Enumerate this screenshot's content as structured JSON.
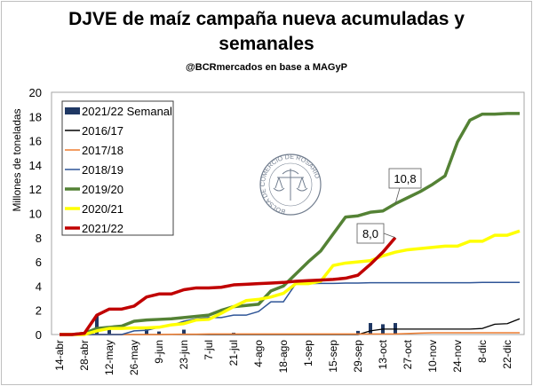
{
  "chart_data": {
    "type": "line",
    "title_line1": "DJVE de maíz campaña nueva acumuladas y",
    "title_line2": "semanales",
    "subtitle": "@BCRmercados  en base a MAGyP",
    "ylabel": "Millones de toneladas",
    "xlabel": "",
    "ylim": [
      0,
      20
    ],
    "yticks": [
      "0",
      "2",
      "4",
      "6",
      "8",
      "10",
      "12",
      "14",
      "16",
      "18",
      "20"
    ],
    "x_tick_labels": [
      "14-abr",
      "28-abr",
      "12-may",
      "26-may",
      "9-jun",
      "23-jun",
      "7-jul",
      "21-jul",
      "4-ago",
      "18-ago",
      "1-sep",
      "15-sep",
      "29-sep",
      "13-oct",
      "27-oct",
      "10-nov",
      "24-nov",
      "8-dic",
      "22-dic"
    ],
    "weeks": 38,
    "grid": false,
    "legend_position": "top-left",
    "logo_text": "BOLSA DE COMERCIO DE ROSARIO",
    "bars": {
      "name": "2021/22 Semanal",
      "color": "#1f3864",
      "points": [
        [
          3,
          1.6
        ],
        [
          4,
          0.45
        ],
        [
          7,
          0.55
        ],
        [
          8,
          0.25
        ],
        [
          10,
          0.4
        ],
        [
          11,
          0.05
        ],
        [
          14,
          0.15
        ],
        [
          24,
          0.3
        ],
        [
          25,
          0.95
        ],
        [
          26,
          0.85
        ],
        [
          27,
          0.95
        ]
      ]
    },
    "series": [
      {
        "name": "2016/17",
        "color": "#000000",
        "width": 1.3,
        "values": [
          0,
          0,
          0,
          0,
          0,
          0,
          0,
          0,
          0,
          0,
          0,
          0,
          0,
          0,
          0,
          0,
          0,
          0,
          0,
          0,
          0,
          0,
          0,
          0,
          0,
          0.3,
          0.45,
          0.45,
          0.45,
          0.45,
          0.45,
          0.45,
          0.45,
          0.45,
          0.5,
          0.85,
          0.9,
          1.3
        ]
      },
      {
        "name": "2017/18",
        "color": "#ed7d31",
        "width": 1.5,
        "values": [
          0,
          0,
          0,
          0,
          0,
          0,
          0,
          0,
          0,
          0.02,
          0.03,
          0.03,
          0.05,
          0.05,
          0.05,
          0.05,
          0.05,
          0.05,
          0.05,
          0.05,
          0.05,
          0.05,
          0.05,
          0.05,
          0.05,
          0.05,
          0.05,
          0.05,
          0.08,
          0.12,
          0.15,
          0.15,
          0.15,
          0.15,
          0.15,
          0.15,
          0.15,
          0.15
        ]
      },
      {
        "name": "2018/19",
        "color": "#2f5597",
        "width": 1.5,
        "values": [
          0,
          0,
          0,
          0,
          0,
          0,
          0.3,
          0.35,
          0.6,
          0.75,
          1.1,
          1.3,
          1.4,
          1.4,
          1.6,
          1.6,
          1.9,
          2.7,
          2.7,
          4.2,
          4.2,
          4.22,
          4.22,
          4.25,
          4.25,
          4.28,
          4.28,
          4.28,
          4.28,
          4.28,
          4.28,
          4.28,
          4.28,
          4.28,
          4.3,
          4.3,
          4.3,
          4.3
        ]
      },
      {
        "name": "2019/20",
        "color": "#548235",
        "width": 3.5,
        "values": [
          0,
          0,
          0.1,
          0.5,
          0.6,
          0.7,
          1.1,
          1.2,
          1.25,
          1.3,
          1.4,
          1.5,
          1.6,
          2.0,
          2.3,
          2.4,
          2.5,
          3.6,
          4.0,
          5.0,
          6.0,
          6.9,
          8.3,
          9.7,
          9.8,
          10.1,
          10.2,
          10.8,
          11.3,
          11.8,
          12.4,
          13.1,
          15.9,
          17.7,
          18.2,
          18.2,
          18.25,
          18.25
        ]
      },
      {
        "name": "2020/21",
        "color": "#ffff00",
        "width": 3.5,
        "values": [
          0,
          0,
          0,
          0.3,
          0.5,
          0.5,
          0.55,
          0.55,
          0.6,
          0.8,
          0.9,
          1.2,
          1.25,
          1.75,
          2.3,
          2.8,
          2.9,
          3.1,
          3.4,
          4.2,
          4.2,
          4.4,
          5.7,
          5.9,
          6.0,
          6.1,
          6.5,
          6.8,
          7.0,
          7.1,
          7.2,
          7.3,
          7.3,
          7.7,
          7.7,
          8.2,
          8.2,
          8.55
        ]
      },
      {
        "name": "2021/22",
        "color": "#c00000",
        "width": 3.5,
        "values": [
          0,
          0,
          0.1,
          1.6,
          2.1,
          2.1,
          2.35,
          3.1,
          3.35,
          3.35,
          3.7,
          3.85,
          3.85,
          3.9,
          4.1,
          4.15,
          4.2,
          4.25,
          4.3,
          4.4,
          4.45,
          4.5,
          4.55,
          4.65,
          4.9,
          5.8,
          6.8,
          8.0
        ]
      }
    ],
    "annotations": [
      {
        "text": "10,8",
        "series": "2019/20",
        "week": 27
      },
      {
        "text": "8,0",
        "series": "2021/22",
        "week": 27
      }
    ]
  }
}
